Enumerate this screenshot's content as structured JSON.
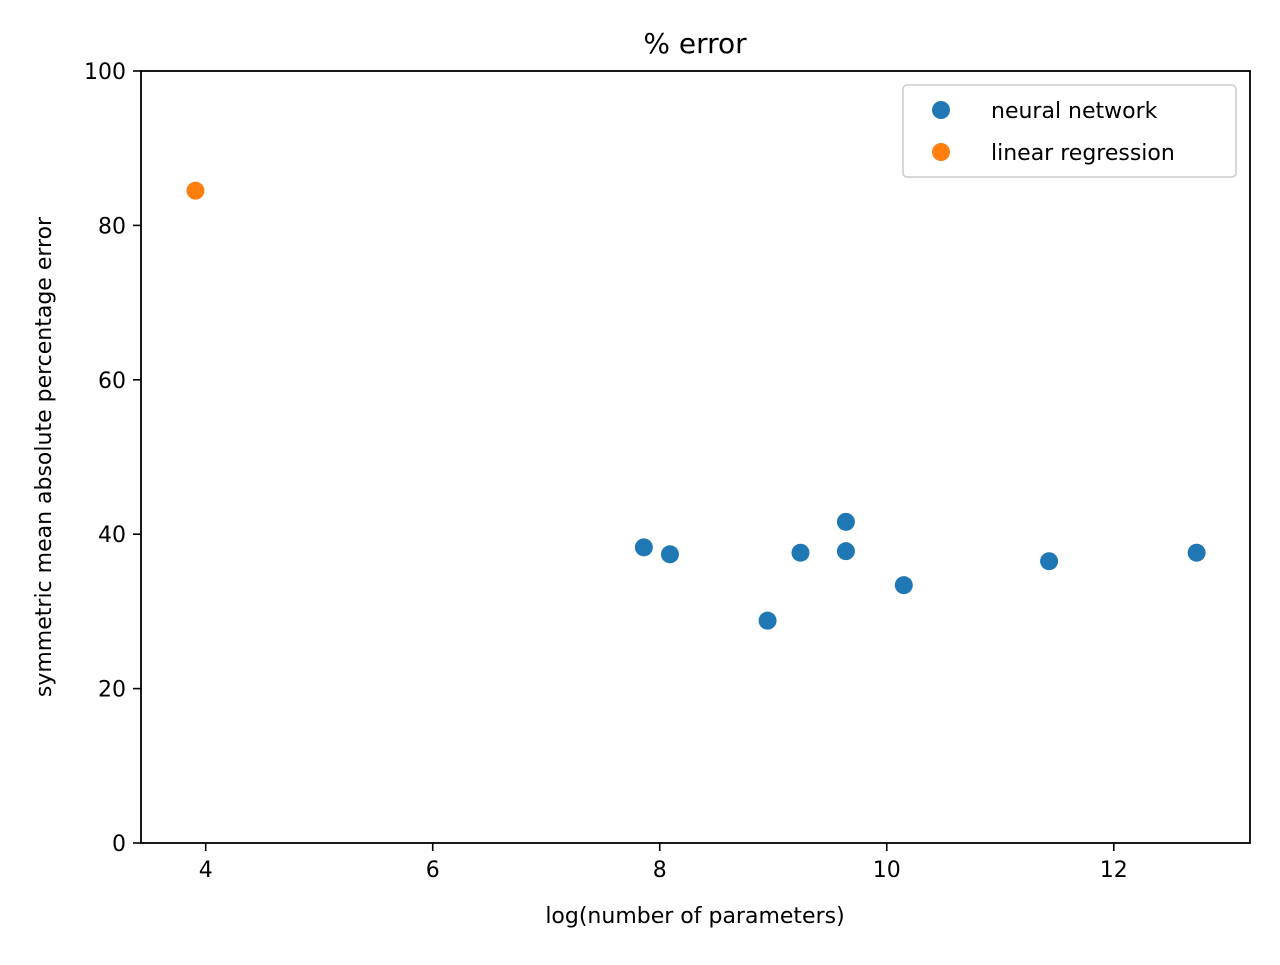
{
  "chart_data": {
    "type": "scatter",
    "title": "% error",
    "xlabel": "log(number of parameters)",
    "ylabel": "symmetric mean absolute percentage error",
    "xlim": [
      3.43,
      13.2
    ],
    "ylim": [
      0,
      100
    ],
    "xticks": [
      4,
      6,
      8,
      10,
      12
    ],
    "yticks": [
      0,
      20,
      40,
      60,
      80,
      100
    ],
    "grid": false,
    "legend_position": "top-right",
    "series": [
      {
        "name": "neural network",
        "color": "#1f77b4",
        "points": [
          {
            "x": 7.86,
            "y": 38.3
          },
          {
            "x": 8.09,
            "y": 37.4
          },
          {
            "x": 8.95,
            "y": 28.8
          },
          {
            "x": 9.24,
            "y": 37.6
          },
          {
            "x": 9.64,
            "y": 41.6
          },
          {
            "x": 9.64,
            "y": 37.8
          },
          {
            "x": 10.15,
            "y": 33.4
          },
          {
            "x": 11.43,
            "y": 36.5
          },
          {
            "x": 12.73,
            "y": 37.6
          }
        ]
      },
      {
        "name": "linear regression",
        "color": "#ff7f0e",
        "points": [
          {
            "x": 3.91,
            "y": 84.5
          }
        ]
      }
    ]
  }
}
